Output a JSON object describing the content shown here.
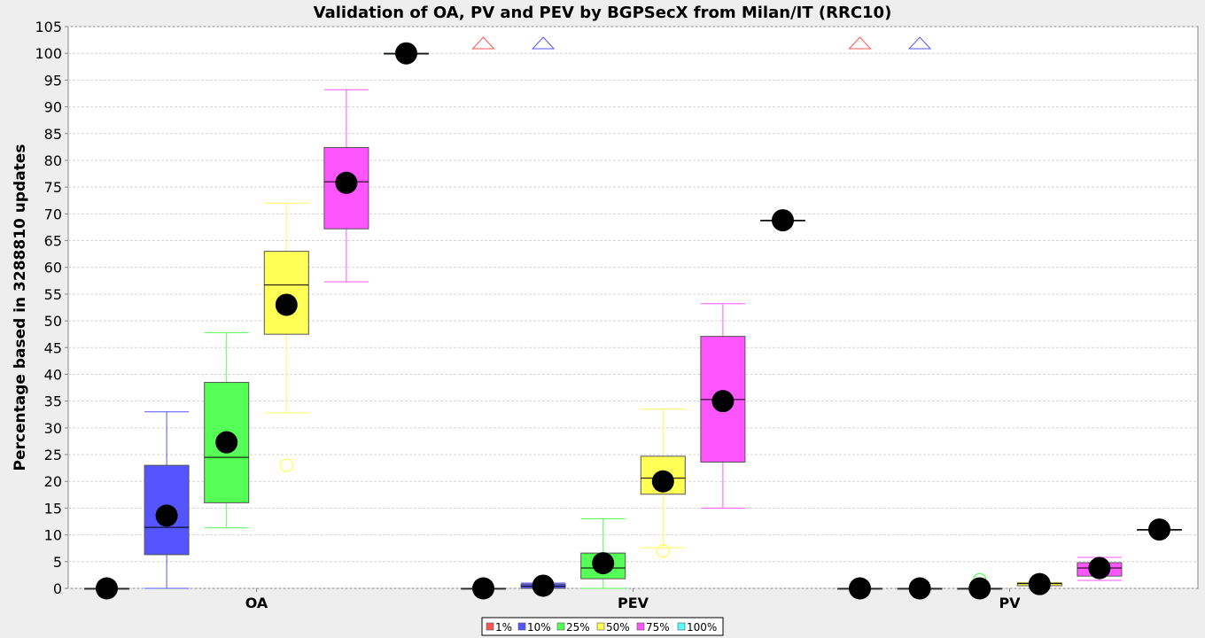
{
  "chart_data": {
    "type": "box",
    "title": "Validation of OA, PV and PEV by BGPSecX from Milan/IT (RRC10)",
    "ylabel": "Percentage based in 3288810 updates",
    "xlabel": "",
    "ylim": [
      0,
      105
    ],
    "yticks": [
      0,
      5,
      10,
      15,
      20,
      25,
      30,
      35,
      40,
      45,
      50,
      55,
      60,
      65,
      70,
      75,
      80,
      85,
      90,
      95,
      100,
      105
    ],
    "grid": true,
    "legend_position": "bottom",
    "categories": [
      "OA",
      "PEV",
      "PV"
    ],
    "series": [
      {
        "name": "1%",
        "color": "#ff5555",
        "boxes": [
          {
            "min": 0,
            "q1": 0,
            "median": 0,
            "q3": 0,
            "max": 0,
            "mean": 0,
            "outliers": []
          },
          {
            "min": 0,
            "q1": 0,
            "median": 0,
            "q3": 0,
            "max": 0,
            "mean": 0,
            "outliers": []
          },
          {
            "min": 0,
            "q1": 0,
            "median": 0,
            "q3": 0,
            "max": 0,
            "mean": 0,
            "outliers": []
          }
        ],
        "far_outlier_above": [
          false,
          true,
          true
        ]
      },
      {
        "name": "10%",
        "color": "#5555ff",
        "boxes": [
          {
            "min": 0,
            "q1": 6.3,
            "median": 11.4,
            "q3": 23,
            "max": 33,
            "mean": 13.6,
            "outliers": []
          },
          {
            "min": 0,
            "q1": 0,
            "median": 0.4,
            "q3": 0.8,
            "max": 1,
            "mean": 0.5,
            "outliers": []
          },
          {
            "min": 0,
            "q1": 0,
            "median": 0,
            "q3": 0,
            "max": 0,
            "mean": 0,
            "outliers": []
          }
        ],
        "far_outlier_above": [
          false,
          true,
          true
        ]
      },
      {
        "name": "25%",
        "color": "#55ff55",
        "boxes": [
          {
            "min": 11.3,
            "q1": 16,
            "median": 24.5,
            "q3": 38.5,
            "max": 47.8,
            "mean": 27.3,
            "outliers": []
          },
          {
            "min": 0,
            "q1": 1.8,
            "median": 3.8,
            "q3": 6.6,
            "max": 13,
            "mean": 4.7,
            "outliers": []
          },
          {
            "min": 0,
            "q1": 0,
            "median": 0,
            "q3": 0,
            "max": 0,
            "mean": 0,
            "outliers": [
              1.6
            ]
          }
        ],
        "far_outlier_above": [
          false,
          false,
          false
        ]
      },
      {
        "name": "50%",
        "color": "#ffff55",
        "boxes": [
          {
            "min": 32.8,
            "q1": 47.5,
            "median": 56.7,
            "q3": 63,
            "max": 72,
            "mean": 53,
            "outliers": [
              23
            ]
          },
          {
            "min": 7.6,
            "q1": 17.6,
            "median": 20.6,
            "q3": 24.7,
            "max": 33.5,
            "mean": 20,
            "outliers": [
              7
            ]
          },
          {
            "min": 0.5,
            "q1": 0.5,
            "median": 0.9,
            "q3": 1,
            "max": 1.1,
            "mean": 0.8,
            "outliers": []
          }
        ],
        "far_outlier_above": [
          false,
          false,
          false
        ]
      },
      {
        "name": "75%",
        "color": "#ff55ff",
        "boxes": [
          {
            "min": 57.3,
            "q1": 67.2,
            "median": 76,
            "q3": 82.4,
            "max": 93.2,
            "mean": 75.8,
            "outliers": []
          },
          {
            "min": 15,
            "q1": 23.6,
            "median": 35.3,
            "q3": 47.1,
            "max": 53.2,
            "mean": 35,
            "outliers": []
          },
          {
            "min": 1.5,
            "q1": 2.3,
            "median": 3.8,
            "q3": 4.8,
            "max": 5.8,
            "mean": 3.8,
            "outliers": []
          }
        ],
        "far_outlier_above": [
          false,
          false,
          false
        ]
      },
      {
        "name": "100%",
        "color": "#55ffff",
        "boxes": [
          {
            "min": 100,
            "q1": 100,
            "median": 100,
            "q3": 100,
            "max": 100,
            "mean": 100,
            "outliers": []
          },
          {
            "min": 68.8,
            "q1": 68.8,
            "median": 68.8,
            "q3": 68.8,
            "max": 68.8,
            "mean": 68.8,
            "outliers": []
          },
          {
            "min": 11,
            "q1": 11,
            "median": 11,
            "q3": 11,
            "max": 11,
            "mean": 11,
            "outliers": []
          }
        ],
        "far_outlier_above": [
          false,
          false,
          false
        ]
      }
    ]
  }
}
